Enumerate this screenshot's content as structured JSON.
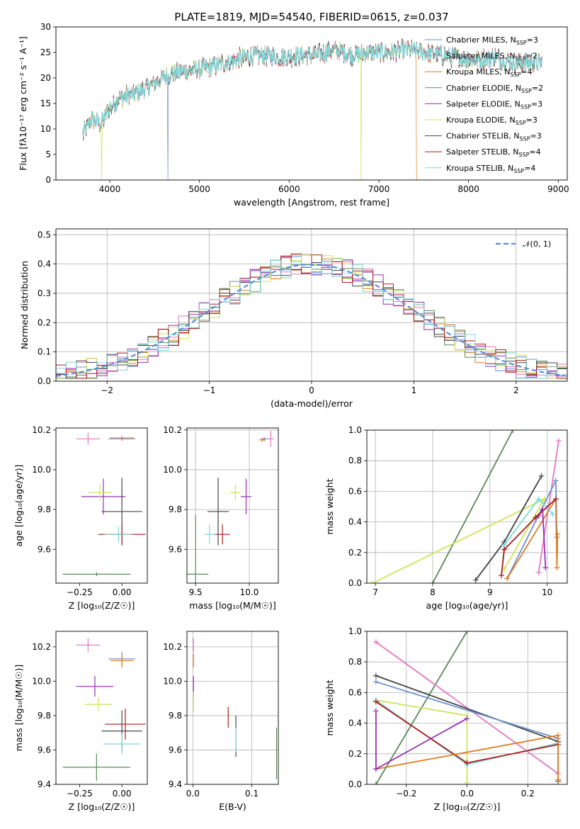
{
  "title": "PLATE=1819, MJD=54540, FIBERID=0615, z=0.037",
  "colors": {
    "Chabrier MILES": "#6b8fd6",
    "Salpeter MILES": "#e377c2",
    "Kroupa MILES": "#e07b20",
    "Chabrier ELODIE": "#5a8a5a",
    "Salpeter ELODIE": "#9a2fb5",
    "Kroupa ELODIE": "#cce655",
    "Chabrier STELIB": "#444444",
    "Salpeter STELIB": "#b01c1c",
    "Kroupa STELIB": "#7fd8d8",
    "gauss": "#5b8fd6"
  },
  "models": [
    {
      "name": "Chabrier MILES",
      "n": 3,
      "leg1": "Chabrier MILES, N",
      "leg2": "=3"
    },
    {
      "name": "Salpeter MILES",
      "n": 2,
      "leg1": "Salpeter MILES, N",
      "leg2": "=2"
    },
    {
      "name": "Kroupa MILES",
      "n": 4,
      "leg1": "Kroupa MILES, N",
      "leg2": "=4"
    },
    {
      "name": "Chabrier ELODIE",
      "n": 2,
      "leg1": "Chabrier ELODIE, N",
      "leg2": "=2"
    },
    {
      "name": "Salpeter ELODIE",
      "n": 3,
      "leg1": "Salpeter ELODIE, N",
      "leg2": "=3"
    },
    {
      "name": "Kroupa ELODIE",
      "n": 3,
      "leg1": "Kroupa ELODIE, N",
      "leg2": "=3"
    },
    {
      "name": "Chabrier STELIB",
      "n": 3,
      "leg1": "Chabrier STELIB, N",
      "leg2": "=3"
    },
    {
      "name": "Salpeter STELIB",
      "n": 4,
      "leg1": "Salpeter STELIB, N",
      "leg2": "=4"
    },
    {
      "name": "Kroupa STELIB",
      "n": 4,
      "leg1": "Kroupa STELIB, N",
      "leg2": "=4"
    }
  ],
  "ssp_subscript": "SSP",
  "chart_data": [
    {
      "type": "line",
      "id": "spectrum",
      "xlabel": "wavelength [Angstrom, rest frame]",
      "ylabel": "Flux [fλ10⁻¹⁷ erg cm⁻² s⁻¹ A⁻¹]",
      "xlim": [
        3400,
        9100
      ],
      "ylim": [
        0,
        30
      ],
      "xticks": [
        4000,
        5000,
        6000,
        7000,
        8000,
        9000
      ],
      "yticks": [
        0,
        5,
        10,
        15,
        20,
        25,
        30
      ],
      "continuum": [
        [
          3700,
          9
        ],
        [
          3800,
          12
        ],
        [
          3900,
          11
        ],
        [
          4000,
          14
        ],
        [
          4100,
          16
        ],
        [
          4300,
          17
        ],
        [
          4500,
          19
        ],
        [
          4700,
          21
        ],
        [
          4900,
          21.5
        ],
        [
          5100,
          22
        ],
        [
          5300,
          23
        ],
        [
          5500,
          24
        ],
        [
          5700,
          24.5
        ],
        [
          5900,
          24
        ],
        [
          6100,
          24.5
        ],
        [
          6300,
          24.5
        ],
        [
          6500,
          25.5
        ],
        [
          6700,
          24.5
        ],
        [
          6900,
          25
        ],
        [
          7100,
          25
        ],
        [
          7300,
          25.5
        ],
        [
          7500,
          25
        ],
        [
          7700,
          24.5
        ],
        [
          7900,
          24
        ],
        [
          8100,
          23.5
        ],
        [
          8300,
          24
        ],
        [
          8500,
          23
        ],
        [
          8700,
          23
        ],
        [
          8820,
          23
        ]
      ],
      "dropouts": [
        {
          "x": 4650,
          "series": "Chabrier MILES"
        },
        {
          "x": 3910,
          "series": "Kroupa ELODIE"
        },
        {
          "x": 6800,
          "series": "Kroupa ELODIE"
        },
        {
          "x": 7420,
          "series": "Kroupa MILES"
        }
      ]
    },
    {
      "type": "line",
      "id": "residuals",
      "xlabel": "(data-model)/error",
      "ylabel": "Normed distribution",
      "xlim": [
        -2.5,
        2.5
      ],
      "ylim": [
        0,
        0.52
      ],
      "xticks": [
        -2,
        -1,
        0,
        1,
        2
      ],
      "yticks": [
        0.0,
        0.1,
        0.2,
        0.3,
        0.4,
        0.5
      ],
      "ytick_labels": [
        "0.0",
        "0.1",
        "0.2",
        "0.3",
        "0.4",
        "0.5"
      ],
      "gauss_label": "𝒩(0, 1)",
      "bin_width": 0.1
    },
    {
      "type": "scatter",
      "id": "age_vs_Z",
      "xlabel": "Z [log₁₀(Z/Z☉)]",
      "ylabel": "age  [log₁₀(age/yr)]",
      "xlim": [
        -0.39,
        0.15
      ],
      "ylim": [
        9.43,
        10.21
      ],
      "xticks": [
        -0.25,
        0.0
      ],
      "xtick_labels": [
        "−0.25",
        "0.00"
      ],
      "yticks": [
        9.6,
        9.8,
        10.0,
        10.2
      ],
      "ytick_labels": [
        "9.6",
        "9.8",
        "10.0",
        "10.2"
      ],
      "points": [
        {
          "s": "Salpeter MILES",
          "x": -0.2,
          "y": 10.155,
          "xe": 0.07,
          "ye": 0.03
        },
        {
          "s": "Chabrier MILES",
          "x": 0.0,
          "y": 10.155,
          "xe": 0.08,
          "ye": 0.01
        },
        {
          "s": "Kroupa MILES",
          "x": 0.0,
          "y": 10.16,
          "xe": 0.07,
          "ye": 0.01
        },
        {
          "s": "Salpeter ELODIE",
          "x": -0.11,
          "y": 9.865,
          "xe": 0.13,
          "ye": 0.09
        },
        {
          "s": "Kroupa ELODIE",
          "x": -0.13,
          "y": 9.885,
          "xe": 0.07,
          "ye": 0.04
        },
        {
          "s": "Chabrier STELIB",
          "x": 0.0,
          "y": 9.79,
          "xe": 0.12,
          "ye": 0.17
        },
        {
          "s": "Salpeter STELIB",
          "x": 0.0,
          "y": 9.675,
          "xe": 0.14,
          "ye": 0.05
        },
        {
          "s": "Kroupa STELIB",
          "x": -0.02,
          "y": 9.675,
          "xe": 0.08,
          "ye": 0.04
        },
        {
          "s": "Chabrier ELODIE",
          "x": -0.15,
          "y": 9.475,
          "xe": 0.2,
          "ye": 0.01
        }
      ]
    },
    {
      "type": "scatter",
      "id": "age_vs_mass",
      "xlabel": "mass [log₁₀(M/M☉)]",
      "ylabel": "",
      "xlim": [
        9.42,
        10.27
      ],
      "ylim": [
        9.43,
        10.21
      ],
      "xticks": [
        9.5,
        10.0
      ],
      "xtick_labels": [
        "9.5",
        "10.0"
      ],
      "yticks": [
        9.6,
        9.8,
        10.0,
        10.2
      ],
      "ytick_labels": [
        "9.6",
        "9.8",
        "10.0",
        "10.2"
      ],
      "points": [
        {
          "s": "Salpeter MILES",
          "x": 10.2,
          "y": 10.155,
          "xe": 0.03,
          "ye": 0.04
        },
        {
          "s": "Chabrier MILES",
          "x": 10.14,
          "y": 10.155,
          "xe": 0.03,
          "ye": 0.01
        },
        {
          "s": "Kroupa MILES",
          "x": 10.12,
          "y": 10.15,
          "xe": 0.03,
          "ye": 0.01
        },
        {
          "s": "Kroupa ELODIE",
          "x": 9.87,
          "y": 9.885,
          "xe": 0.05,
          "ye": 0.04
        },
        {
          "s": "Salpeter ELODIE",
          "x": 9.97,
          "y": 9.865,
          "xe": 0.05,
          "ye": 0.09
        },
        {
          "s": "Chabrier STELIB",
          "x": 9.71,
          "y": 9.79,
          "xe": 0.1,
          "ye": 0.17
        },
        {
          "s": "Kroupa STELIB",
          "x": 9.63,
          "y": 9.675,
          "xe": 0.05,
          "ye": 0.05
        },
        {
          "s": "Salpeter STELIB",
          "x": 9.75,
          "y": 9.675,
          "xe": 0.07,
          "ye": 0.05
        },
        {
          "s": "Chabrier ELODIE",
          "x": 9.5,
          "y": 9.475,
          "xe": 0.12,
          "ye": 0.3
        }
      ]
    },
    {
      "type": "line",
      "id": "massweight_vs_age",
      "xlabel": "age  [log₁₀(age/yr)]",
      "ylabel": "mass weight",
      "xlim": [
        6.85,
        10.35
      ],
      "ylim": [
        0,
        1
      ],
      "xticks": [
        7,
        8,
        9,
        10
      ],
      "yticks": [
        0.0,
        0.2,
        0.4,
        0.6,
        0.8,
        1.0
      ],
      "ytick_labels": [
        "0.0",
        "0.2",
        "0.4",
        "0.6",
        "0.8",
        "1.0"
      ],
      "series": [
        {
          "s": "Chabrier ELODIE",
          "points": [
            [
              8.0,
              0.0
            ],
            [
              9.4,
              1.0
            ]
          ]
        },
        {
          "s": "Kroupa ELODIE",
          "points": [
            [
              6.95,
              0.0
            ],
            [
              9.95,
              0.55
            ],
            [
              9.25,
              0.09
            ]
          ]
        },
        {
          "s": "Chabrier STELIB",
          "points": [
            [
              8.75,
              0.02
            ],
            [
              9.25,
              0.27
            ],
            [
              9.9,
              0.7
            ]
          ]
        },
        {
          "s": "Salpeter MILES",
          "points": [
            [
              9.85,
              0.07
            ],
            [
              10.2,
              0.93
            ]
          ]
        },
        {
          "s": "Chabrier MILES",
          "points": [
            [
              9.3,
              0.03
            ],
            [
              10.15,
              0.67
            ],
            [
              10.17,
              0.3
            ]
          ]
        },
        {
          "s": "Kroupa MILES",
          "points": [
            [
              9.3,
              0.03
            ],
            [
              10.15,
              0.55
            ],
            [
              10.17,
              0.1
            ],
            [
              10.18,
              0.32
            ]
          ]
        },
        {
          "s": "Salpeter ELODIE",
          "points": [
            [
              9.85,
              0.44
            ],
            [
              9.92,
              0.48
            ],
            [
              9.97,
              0.1
            ]
          ]
        },
        {
          "s": "Kroupa STELIB",
          "points": [
            [
              9.2,
              0.05
            ],
            [
              9.25,
              0.25
            ],
            [
              9.85,
              0.55
            ],
            [
              10.1,
              0.45
            ]
          ]
        },
        {
          "s": "Salpeter STELIB",
          "points": [
            [
              9.2,
              0.05
            ],
            [
              9.25,
              0.22
            ],
            [
              9.8,
              0.43
            ],
            [
              10.15,
              0.55
            ]
          ]
        }
      ]
    },
    {
      "type": "scatter",
      "id": "mass_vs_Z",
      "xlabel": "Z [log₁₀(Z/Z☉)]",
      "ylabel": "mass [log₁₀(M/M☉)]",
      "xlim": [
        -0.39,
        0.15
      ],
      "ylim": [
        9.4,
        10.29
      ],
      "xticks": [
        -0.25,
        0.0
      ],
      "xtick_labels": [
        "−0.25",
        "0.00"
      ],
      "yticks": [
        9.4,
        9.6,
        9.8,
        10.0,
        10.2
      ],
      "ytick_labels": [
        "9.4",
        "9.6",
        "9.8",
        "10.0",
        "10.2"
      ],
      "points": [
        {
          "s": "Salpeter MILES",
          "x": -0.2,
          "y": 10.21,
          "xe": 0.07,
          "ye": 0.04
        },
        {
          "s": "Chabrier MILES",
          "x": 0.0,
          "y": 10.13,
          "xe": 0.08,
          "ye": 0.04
        },
        {
          "s": "Kroupa MILES",
          "x": 0.0,
          "y": 10.12,
          "xe": 0.07,
          "ye": 0.04
        },
        {
          "s": "Salpeter ELODIE",
          "x": -0.16,
          "y": 9.97,
          "xe": 0.11,
          "ye": 0.06
        },
        {
          "s": "Kroupa ELODIE",
          "x": -0.14,
          "y": 9.865,
          "xe": 0.08,
          "ye": 0.04
        },
        {
          "s": "Salpeter STELIB",
          "x": 0.02,
          "y": 9.75,
          "xe": 0.12,
          "ye": 0.09
        },
        {
          "s": "Chabrier STELIB",
          "x": 0.0,
          "y": 9.71,
          "xe": 0.12,
          "ye": 0.12
        },
        {
          "s": "Kroupa STELIB",
          "x": 0.0,
          "y": 9.635,
          "xe": 0.11,
          "ye": 0.06
        },
        {
          "s": "Chabrier ELODIE",
          "x": -0.15,
          "y": 9.5,
          "xe": 0.2,
          "ye": 0.08
        }
      ]
    },
    {
      "type": "scatter",
      "id": "mass_vs_ebv",
      "xlabel": "E(B-V)",
      "ylabel": "",
      "xlim": [
        -0.01,
        0.145
      ],
      "ylim": [
        9.4,
        10.29
      ],
      "xticks": [
        0.0,
        0.1
      ],
      "xtick_labels": [
        "0.0",
        "0.1"
      ],
      "yticks": [
        9.4,
        9.6,
        9.8,
        10.0,
        10.2
      ],
      "ytick_labels": [
        "9.4",
        "9.6",
        "9.8",
        "10.0",
        "10.2"
      ],
      "points": [
        {
          "s": "Salpeter MILES",
          "x": 0.001,
          "y": 10.21,
          "xe": 0,
          "ye": 0.04
        },
        {
          "s": "Kroupa MILES",
          "x": 0.001,
          "y": 10.12,
          "xe": 0,
          "ye": 0.04
        },
        {
          "s": "Salpeter ELODIE",
          "x": 0.001,
          "y": 9.97,
          "xe": 0,
          "ye": 0.06
        },
        {
          "s": "Kroupa ELODIE",
          "x": 0.001,
          "y": 9.88,
          "xe": 0,
          "ye": 0.06
        },
        {
          "s": "Salpeter STELIB",
          "x": 0.06,
          "y": 9.79,
          "xe": 0,
          "ye": 0.06
        },
        {
          "s": "Chabrier STELIB",
          "x": 0.073,
          "y": 9.68,
          "xe": 0,
          "ye": 0.12
        },
        {
          "s": "Kroupa STELIB",
          "x": 0.073,
          "y": 9.66,
          "xe": 0,
          "ye": 0.07
        },
        {
          "s": "Chabrier ELODIE",
          "x": 0.142,
          "y": 9.58,
          "xe": 0,
          "ye": 0.15
        }
      ]
    },
    {
      "type": "line",
      "id": "massweight_vs_Z",
      "xlabel": "Z [log₁₀(Z/Z☉)]",
      "ylabel": "mass weight",
      "xlim": [
        -0.33,
        0.33
      ],
      "ylim": [
        0,
        1
      ],
      "xticks": [
        -0.2,
        0.0,
        0.2
      ],
      "xtick_labels": [
        "−0.2",
        "0.0",
        "0.2"
      ],
      "yticks": [
        0.0,
        0.2,
        0.4,
        0.6,
        0.8,
        1.0
      ],
      "ytick_labels": [
        "0.0",
        "0.2",
        "0.4",
        "0.6",
        "0.8",
        "1.0"
      ],
      "series": [
        {
          "s": "Chabrier ELODIE",
          "points": [
            [
              -0.3,
              0.0
            ],
            [
              0.0,
              1.0
            ]
          ]
        },
        {
          "s": "Salpeter MILES",
          "points": [
            [
              -0.3,
              0.93
            ],
            [
              0.3,
              0.07
            ]
          ]
        },
        {
          "s": "Chabrier STELIB",
          "points": [
            [
              -0.3,
              0.71
            ],
            [
              0.3,
              0.28
            ],
            [
              0.3,
              0.02
            ]
          ]
        },
        {
          "s": "Chabrier MILES",
          "points": [
            [
              -0.3,
              0.67
            ],
            [
              0.3,
              0.3
            ]
          ]
        },
        {
          "s": "Kroupa ELODIE",
          "points": [
            [
              -0.3,
              0.55
            ],
            [
              0.0,
              0.45
            ],
            [
              0.0,
              0.01
            ]
          ]
        },
        {
          "s": "Kroupa STELIB",
          "points": [
            [
              -0.3,
              0.55
            ],
            [
              0.0,
              0.13
            ],
            [
              0.3,
              0.27
            ],
            [
              0.3,
              0.03
            ]
          ]
        },
        {
          "s": "Salpeter STELIB",
          "points": [
            [
              -0.3,
              0.54
            ],
            [
              0.0,
              0.14
            ],
            [
              0.3,
              0.26
            ]
          ]
        },
        {
          "s": "Kroupa MILES",
          "points": [
            [
              -0.3,
              0.1
            ],
            [
              0.3,
              0.32
            ],
            [
              0.3,
              0.03
            ]
          ]
        },
        {
          "s": "Salpeter ELODIE",
          "points": [
            [
              -0.3,
              0.48
            ],
            [
              -0.3,
              0.1
            ],
            [
              0.0,
              0.43
            ]
          ]
        }
      ]
    }
  ]
}
